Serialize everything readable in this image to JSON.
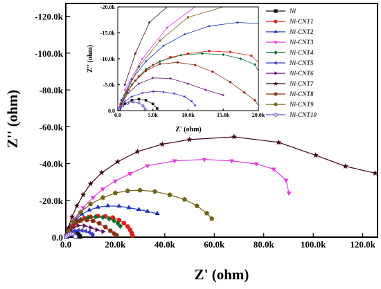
{
  "chart_data": {
    "type": "line",
    "title": "",
    "xlabel": "Z' (ohm)",
    "ylabel": "Z'' (ohm)",
    "xlim": [
      0,
      126000
    ],
    "ylim": [
      0,
      -127000
    ],
    "xticks": [
      0,
      20000,
      40000,
      60000,
      80000,
      100000,
      120000
    ],
    "xtick_labels": [
      "0.0",
      "20.0k",
      "40.0k",
      "60.0k",
      "80.0k",
      "100.0k",
      "120.0k"
    ],
    "yticks": [
      0,
      -20000,
      -40000,
      -60000,
      -80000,
      -100000,
      -120000
    ],
    "ytick_labels": [
      "0.0",
      "-20.0k",
      "-40.0k",
      "-60.0k",
      "-80.0k",
      "-100.0k",
      "-120.0k"
    ],
    "legend_position": "right",
    "grid": false,
    "series": [
      {
        "name": "Ni",
        "color": "#111111",
        "marker": "square",
        "points": [
          [
            0.3,
            -0.3
          ],
          [
            1,
            -1.3
          ],
          [
            2,
            -2
          ],
          [
            3,
            -2.2
          ],
          [
            4,
            -2
          ],
          [
            5,
            -1.3
          ],
          [
            5.6,
            -0.4
          ]
        ]
      },
      {
        "name": "Ni-CNT1",
        "color": "#e0201b",
        "marker": "circle",
        "points": [
          [
            0.4,
            -1
          ],
          [
            1.5,
            -4
          ],
          [
            3,
            -6.6
          ],
          [
            5,
            -8.8
          ],
          [
            7.5,
            -10.3
          ],
          [
            10,
            -11
          ],
          [
            13,
            -11.5
          ],
          [
            16,
            -11.3
          ],
          [
            19,
            -10.6
          ],
          [
            21.5,
            -9.3
          ],
          [
            23.5,
            -7.6
          ],
          [
            25,
            -5.8
          ],
          [
            26,
            -4
          ],
          [
            26.6,
            -2.3
          ],
          [
            27,
            -0.8
          ]
        ]
      },
      {
        "name": "Ni-CNT2",
        "color": "#1a2fb8",
        "marker": "triangle-up",
        "points": [
          [
            0.5,
            -2
          ],
          [
            2,
            -6
          ],
          [
            4,
            -9.5
          ],
          [
            6.5,
            -12.5
          ],
          [
            9.5,
            -14.7
          ],
          [
            13,
            -16.3
          ],
          [
            17,
            -17
          ],
          [
            21.5,
            -16.8
          ],
          [
            25.5,
            -16
          ],
          [
            29.5,
            -15
          ],
          [
            33,
            -14
          ],
          [
            37,
            -12.8
          ]
        ]
      },
      {
        "name": "Ni-CNT3",
        "color": "#e539e0",
        "marker": "triangle-down",
        "points": [
          [
            1,
            -4
          ],
          [
            3.5,
            -10
          ],
          [
            7,
            -16
          ],
          [
            11,
            -21.6
          ],
          [
            15,
            -26.2
          ],
          [
            20,
            -30.5
          ],
          [
            26,
            -34.5
          ],
          [
            33,
            -38.8
          ],
          [
            44,
            -41.5
          ],
          [
            56,
            -42.2
          ],
          [
            67,
            -41.5
          ],
          [
            77,
            -39.8
          ],
          [
            84,
            -37
          ],
          [
            89,
            -31
          ],
          [
            90.2,
            -24
          ]
        ]
      },
      {
        "name": "Ni-CNT4",
        "color": "#0c6b2c",
        "marker": "diamond",
        "points": [
          [
            0.5,
            -1.5
          ],
          [
            2,
            -5
          ],
          [
            4,
            -8
          ],
          [
            6,
            -9.5
          ],
          [
            9,
            -10.7
          ],
          [
            12,
            -11
          ],
          [
            15,
            -10.8
          ],
          [
            17.5,
            -10
          ],
          [
            19.5,
            -8.9
          ],
          [
            21,
            -7.6
          ],
          [
            22,
            -6
          ]
        ]
      },
      {
        "name": "Ni-CNT5",
        "color": "#3a34c8",
        "marker": "triangle-left",
        "points": [
          [
            0.3,
            -0.7
          ],
          [
            1,
            -1.8
          ],
          [
            2,
            -2.7
          ],
          [
            3.5,
            -3.4
          ],
          [
            5,
            -3.7
          ],
          [
            6.5,
            -3.6
          ],
          [
            8,
            -3.3
          ],
          [
            9.5,
            -2.7
          ],
          [
            10.5,
            -1.8
          ],
          [
            11,
            -1
          ]
        ]
      },
      {
        "name": "Ni-CNT6",
        "color": "#5e1268",
        "marker": "triangle-right",
        "points": [
          [
            0.5,
            -1.3
          ],
          [
            1.5,
            -3.4
          ],
          [
            3,
            -5.2
          ],
          [
            5,
            -6.3
          ],
          [
            7.5,
            -6.2
          ],
          [
            10,
            -5.2
          ],
          [
            12.5,
            -4
          ],
          [
            15,
            -3
          ]
        ]
      },
      {
        "name": "Ni-CNT7",
        "color": "#3d0813",
        "marker": "star",
        "points": [
          [
            1,
            -5
          ],
          [
            2.5,
            -11
          ],
          [
            4.5,
            -17
          ],
          [
            7,
            -23
          ],
          [
            10,
            -29
          ],
          [
            14.5,
            -35
          ],
          [
            21,
            -41
          ],
          [
            29,
            -46.5
          ],
          [
            39,
            -50.5
          ],
          [
            50,
            -53
          ],
          [
            68,
            -54.5
          ],
          [
            86,
            -51.5
          ],
          [
            101,
            -44.5
          ],
          [
            113,
            -38.5
          ],
          [
            125,
            -34.8
          ]
        ]
      },
      {
        "name": "Ni-CNT8",
        "color": "#8b2c14",
        "marker": "hexagon",
        "points": [
          [
            0.4,
            -1.3
          ],
          [
            1.2,
            -3.5
          ],
          [
            2.5,
            -5.8
          ],
          [
            4,
            -7.7
          ],
          [
            6,
            -9
          ],
          [
            8.5,
            -9.3
          ],
          [
            11,
            -8.8
          ],
          [
            13.5,
            -7.5
          ],
          [
            16,
            -5.5
          ],
          [
            18,
            -3.5
          ],
          [
            19.5,
            -2
          ],
          [
            20.5,
            -1
          ]
        ]
      },
      {
        "name": "Ni-CNT9",
        "color": "#6f6415",
        "marker": "pentagon",
        "points": [
          [
            1,
            -3
          ],
          [
            3,
            -8.5
          ],
          [
            6,
            -13.5
          ],
          [
            10,
            -18
          ],
          [
            15,
            -21.5
          ],
          [
            20,
            -24
          ],
          [
            25,
            -25.2
          ],
          [
            30,
            -25.5
          ],
          [
            36,
            -24.8
          ],
          [
            42,
            -23
          ],
          [
            48,
            -20.5
          ],
          [
            53,
            -17
          ],
          [
            57,
            -13
          ],
          [
            59,
            -10
          ]
        ]
      },
      {
        "name": "Ni-CNT10",
        "color": "#6a52c8",
        "marker": "circle-open",
        "points": [
          [
            0.2,
            -0.3
          ],
          [
            0.7,
            -0.9
          ],
          [
            1.4,
            -1.4
          ],
          [
            2.2,
            -1.7
          ],
          [
            3,
            -1.5
          ],
          [
            3.6,
            -0.9
          ],
          [
            3.9,
            -0.3
          ]
        ]
      }
    ],
    "inset": {
      "xlabel": "Z' (ohm)",
      "ylabel": "Z'' (ohm)",
      "xlim": [
        0,
        20000
      ],
      "ylim": [
        0,
        -20000
      ],
      "xticks": [
        0,
        5000,
        10000,
        15000,
        20000
      ],
      "xtick_labels": [
        "0.0",
        "5.0k",
        "10.0k",
        "15.0k",
        "20.0k"
      ],
      "yticks": [
        0,
        -5000,
        -10000,
        -15000,
        -20000
      ],
      "ytick_labels": [
        "0.0",
        "-5.0k",
        "-10.0k",
        "-15.0k",
        "-20.0k"
      ]
    }
  }
}
